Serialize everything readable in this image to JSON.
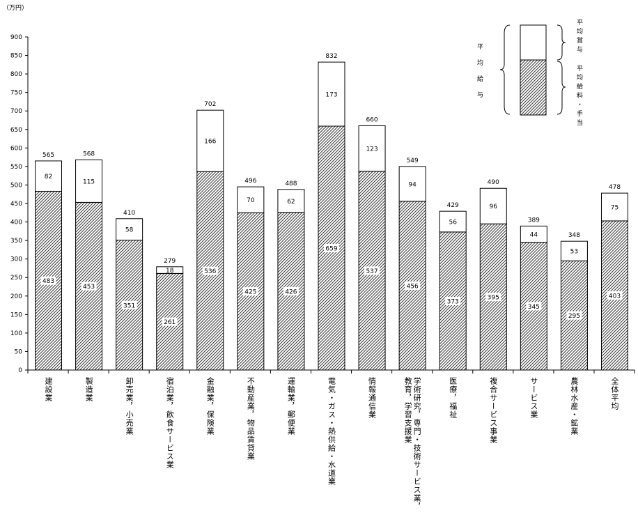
{
  "chart_data": {
    "type": "bar",
    "stacked": true,
    "unit_label": "（万円）",
    "ylim": [
      0,
      900
    ],
    "yticks": [
      0,
      50,
      100,
      150,
      200,
      250,
      300,
      350,
      400,
      450,
      500,
      550,
      600,
      650,
      700,
      750,
      800,
      850,
      900
    ],
    "categories": [
      "建設業",
      "製造業",
      "卸売業，小売業",
      "宿泊業，飲食サービス業",
      "金融業，保険業",
      "不動産業，物品賃貸業",
      "運輸業，郵便業",
      "電気・ガス・熱供給・水道業",
      "情報通信業",
      "学術研究，専門・技術サービス業，教育，学習支援業",
      "医療，福祉",
      "複合サービス事業",
      "サービス業",
      "農林水産・鉱業",
      "全体平均"
    ],
    "category_lines": [
      [
        "建設業"
      ],
      [
        "製造業"
      ],
      [
        "卸売業，小売業"
      ],
      [
        "宿泊業，飲食サービス業"
      ],
      [
        "金融業，保険業"
      ],
      [
        "不動産業，物品賃貸業"
      ],
      [
        "運輸業，郵便業"
      ],
      [
        "電気・ガス・熱供給・水道業"
      ],
      [
        "情報通信業"
      ],
      [
        "学術研究，専門・技術サービス業，",
        "教育，学習支援業"
      ],
      [
        "医療，福祉"
      ],
      [
        "複合サービス事業"
      ],
      [
        "サービス業"
      ],
      [
        "農林水産・鉱業"
      ],
      [
        "全体平均"
      ]
    ],
    "series": [
      {
        "name": "平均給料・手当",
        "values": [
          483,
          453,
          351,
          261,
          536,
          425,
          426,
          659,
          537,
          456,
          373,
          395,
          345,
          295,
          403
        ],
        "pattern": "hatch"
      },
      {
        "name": "平均賞与",
        "values": [
          82,
          115,
          58,
          18,
          166,
          70,
          62,
          173,
          123,
          94,
          56,
          96,
          44,
          53,
          75
        ],
        "pattern": "white"
      }
    ],
    "totals": [
      565,
      568,
      410,
      279,
      702,
      496,
      488,
      832,
      660,
      549,
      429,
      490,
      389,
      348,
      478
    ],
    "legend": {
      "group_label": "平均給与",
      "placement": "top-right"
    },
    "grid": false
  }
}
